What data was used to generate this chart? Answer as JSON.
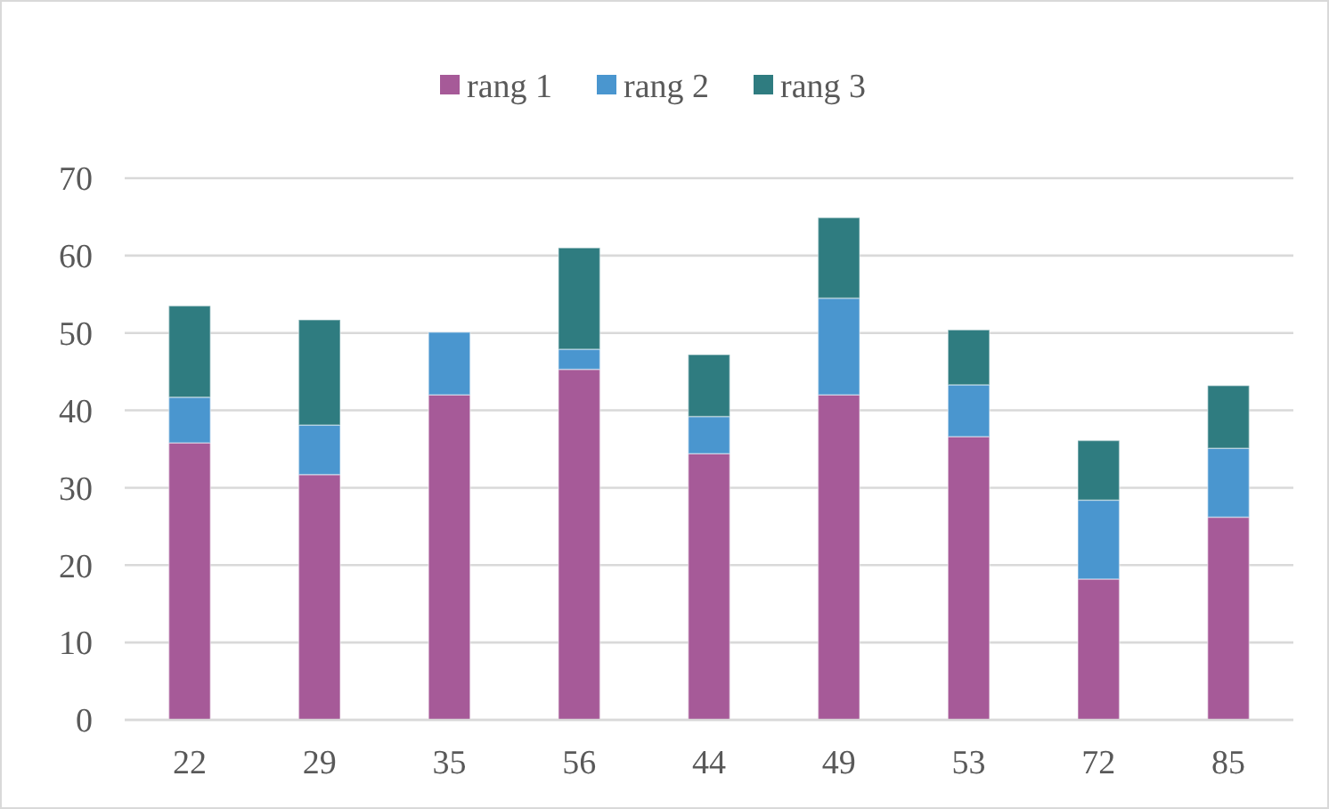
{
  "chart_data": {
    "type": "bar",
    "stacked": true,
    "categories": [
      "22",
      "29",
      "35",
      "56",
      "44",
      "49",
      "53",
      "72",
      "85"
    ],
    "series": [
      {
        "name": "rang 1",
        "color": "#a65a98",
        "values": [
          35.8,
          31.7,
          42.0,
          45.3,
          34.4,
          42.0,
          36.6,
          18.2,
          26.2
        ]
      },
      {
        "name": "rang 2",
        "color": "#4a96cf",
        "values": [
          5.9,
          6.4,
          8.1,
          2.6,
          4.8,
          12.5,
          6.7,
          10.2,
          8.9
        ]
      },
      {
        "name": "rang 3",
        "color": "#2f7c80",
        "values": [
          11.8,
          13.6,
          0,
          13.1,
          8.0,
          10.4,
          7.1,
          7.7,
          8.1
        ]
      }
    ],
    "ylim": [
      0,
      70
    ],
    "yticks": [
      0,
      10,
      20,
      30,
      40,
      50,
      60,
      70
    ],
    "grid": "y",
    "legend": "top"
  }
}
